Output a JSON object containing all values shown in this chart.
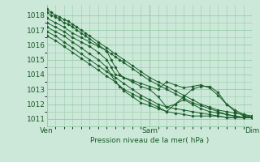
{
  "xlabel": "Pression niveau de la mer( hPa )",
  "ylim": [
    1010.5,
    1018.7
  ],
  "xlim": [
    0,
    48
  ],
  "yticks": [
    1011,
    1012,
    1013,
    1014,
    1015,
    1016,
    1017,
    1018
  ],
  "xtick_positions": [
    0,
    24,
    48
  ],
  "xtick_labels": [
    "Ven",
    "Sam",
    "Dim"
  ],
  "bg_color": "#cce8d8",
  "grid_color": "#99ccaa",
  "line_color": "#1a5c2a",
  "lines": [
    {
      "x": [
        0,
        1,
        2,
        3,
        4,
        5,
        6,
        7,
        8,
        9,
        10,
        12,
        14,
        16,
        18,
        20,
        22,
        24,
        26,
        28,
        30,
        32,
        34,
        36,
        38,
        40,
        42,
        44,
        46,
        48
      ],
      "y": [
        1018.4,
        1018.2,
        1018.0,
        1017.9,
        1017.7,
        1017.6,
        1017.4,
        1017.2,
        1017.0,
        1016.8,
        1016.6,
        1016.2,
        1015.8,
        1015.4,
        1015.0,
        1014.6,
        1014.2,
        1013.8,
        1013.5,
        1013.2,
        1012.9,
        1012.6,
        1012.3,
        1012.0,
        1011.8,
        1011.6,
        1011.5,
        1011.4,
        1011.3,
        1011.2
      ]
    },
    {
      "x": [
        0,
        1,
        2,
        3,
        4,
        5,
        6,
        7,
        8,
        9,
        10,
        12,
        14,
        15,
        16,
        17,
        18,
        20,
        22,
        24,
        26,
        28,
        30,
        32,
        34,
        36,
        38,
        40,
        42,
        44,
        46,
        48
      ],
      "y": [
        1018.2,
        1018.0,
        1017.9,
        1017.7,
        1017.5,
        1017.4,
        1017.2,
        1017.0,
        1016.8,
        1016.6,
        1016.4,
        1016.0,
        1015.6,
        1015.4,
        1015.2,
        1015.0,
        1014.8,
        1014.4,
        1014.0,
        1013.6,
        1013.3,
        1013.0,
        1012.7,
        1012.4,
        1012.1,
        1011.9,
        1011.7,
        1011.5,
        1011.3,
        1011.2,
        1011.1,
        1011.1
      ]
    },
    {
      "x": [
        0,
        2,
        4,
        6,
        8,
        10,
        12,
        14,
        15,
        16,
        17,
        18,
        20,
        22,
        24,
        26,
        28,
        30,
        32,
        34,
        36,
        38,
        40,
        42,
        44,
        46,
        48
      ],
      "y": [
        1017.8,
        1017.5,
        1017.2,
        1016.8,
        1016.5,
        1016.2,
        1015.9,
        1015.6,
        1015.0,
        1014.5,
        1014.0,
        1013.8,
        1013.6,
        1013.4,
        1013.2,
        1013.0,
        1013.5,
        1013.3,
        1013.1,
        1013.2,
        1013.3,
        1013.1,
        1012.6,
        1012.0,
        1011.6,
        1011.3,
        1011.1
      ]
    },
    {
      "x": [
        0,
        2,
        4,
        6,
        8,
        10,
        12,
        14,
        15,
        16,
        18,
        20,
        22,
        24,
        26,
        28,
        30,
        32,
        34,
        36,
        38,
        40,
        42,
        44,
        46,
        48
      ],
      "y": [
        1017.5,
        1017.2,
        1016.9,
        1016.5,
        1016.2,
        1015.9,
        1015.5,
        1015.0,
        1014.5,
        1014.0,
        1013.8,
        1013.5,
        1013.2,
        1013.0,
        1012.5,
        1011.8,
        1012.0,
        1012.5,
        1013.0,
        1013.2,
        1013.2,
        1012.8,
        1012.0,
        1011.5,
        1011.2,
        1011.1
      ]
    },
    {
      "x": [
        0,
        2,
        4,
        6,
        8,
        10,
        12,
        14,
        15,
        16,
        18,
        20,
        22,
        24,
        26,
        28,
        30,
        32,
        34,
        36,
        38,
        40,
        42,
        44,
        46,
        48
      ],
      "y": [
        1017.2,
        1016.9,
        1016.6,
        1016.2,
        1015.8,
        1015.4,
        1015.0,
        1014.5,
        1014.0,
        1013.5,
        1013.0,
        1012.7,
        1012.4,
        1012.1,
        1011.8,
        1011.5,
        1012.0,
        1012.3,
        1012.0,
        1011.7,
        1011.5,
        1011.4,
        1011.3,
        1011.2,
        1011.1,
        1011.1
      ]
    },
    {
      "x": [
        0,
        2,
        4,
        6,
        8,
        10,
        12,
        14,
        16,
        18,
        20,
        22,
        24,
        26,
        28,
        30,
        32,
        34,
        36,
        38,
        40,
        42,
        44,
        46,
        48
      ],
      "y": [
        1016.9,
        1016.6,
        1016.2,
        1015.8,
        1015.4,
        1015.0,
        1014.6,
        1014.2,
        1013.8,
        1013.4,
        1013.0,
        1012.6,
        1012.3,
        1012.0,
        1011.8,
        1011.7,
        1011.6,
        1011.5,
        1011.4,
        1011.3,
        1011.2,
        1011.1,
        1011.1,
        1011.1,
        1011.1
      ]
    },
    {
      "x": [
        0,
        2,
        4,
        6,
        8,
        10,
        12,
        14,
        16,
        17,
        18,
        20,
        22,
        24,
        26,
        28,
        30,
        32,
        34,
        36,
        38,
        40,
        42,
        44,
        46,
        48
      ],
      "y": [
        1016.6,
        1016.3,
        1015.9,
        1015.5,
        1015.1,
        1014.7,
        1014.3,
        1013.9,
        1013.5,
        1013.2,
        1012.9,
        1012.5,
        1012.1,
        1011.9,
        1011.7,
        1011.5,
        1011.4,
        1011.3,
        1011.2,
        1011.2,
        1011.2,
        1011.2,
        1011.1,
        1011.1,
        1011.1,
        1011.1
      ]
    }
  ]
}
